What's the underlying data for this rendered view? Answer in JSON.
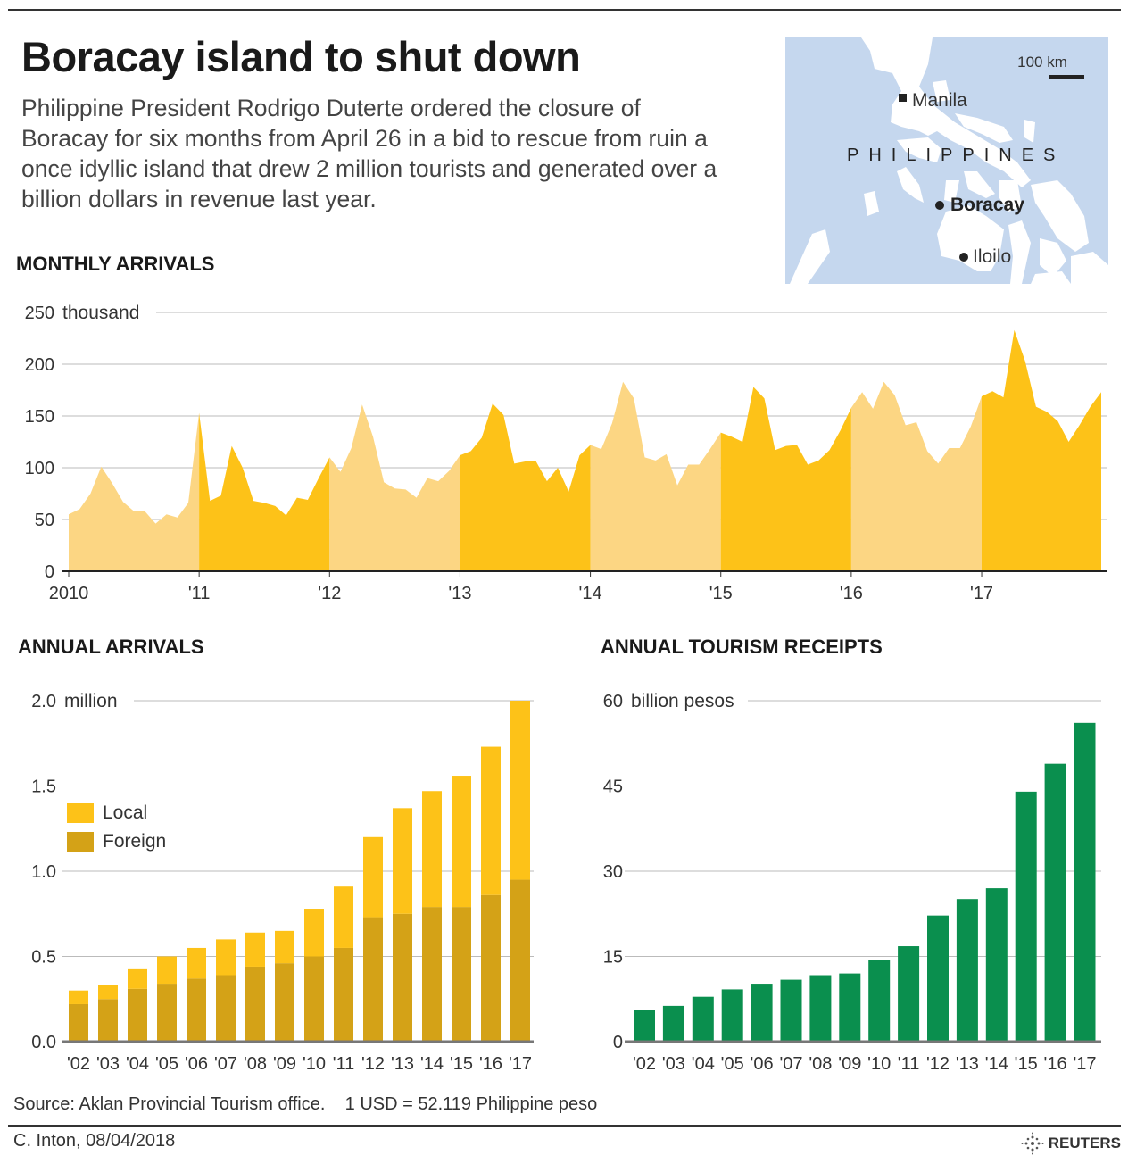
{
  "header": {
    "title": "Boracay island to shut down",
    "subtitle": "Philippine President Rodrigo Duterte ordered the closure of Boracay for six months from April 26 in a bid to rescue from ruin a once idyllic island that drew 2 million tourists and generated over a billion dollars in revenue last year."
  },
  "map": {
    "scale_label": "100 km",
    "country_label": "PHILIPPINES",
    "places": [
      {
        "name": "Manila",
        "marker": "square"
      },
      {
        "name": "Boracay",
        "marker": "dot",
        "bold": true
      },
      {
        "name": "Iloilo",
        "marker": "dot"
      }
    ],
    "colors": {
      "sea": "#c5d7ee",
      "land": "#ffffff"
    }
  },
  "sections": {
    "monthly": "MONTHLY ARRIVALS",
    "annual": "ANNUAL ARRIVALS",
    "receipts": "ANNUAL TOURISM RECEIPTS"
  },
  "chart_data": [
    {
      "type": "area",
      "title": "MONTHLY ARRIVALS",
      "ylabel": "thousand",
      "ylim": [
        0,
        250
      ],
      "yticks": [
        0,
        50,
        100,
        150,
        200,
        250
      ],
      "grid": true,
      "x_tick_labels": [
        "2010",
        "'11",
        "'12",
        "'13",
        "'14",
        "'15",
        "'16",
        "'17"
      ],
      "colors": {
        "even_year": "#fcd683",
        "odd_year": "#fdc218"
      },
      "years": [
        2010,
        2011,
        2012,
        2013,
        2014,
        2015,
        2016,
        2017
      ],
      "values": [
        [
          55,
          60,
          75,
          101,
          85,
          67,
          58,
          58,
          46,
          55,
          52,
          66
        ],
        [
          153,
          68,
          73,
          121,
          100,
          68,
          66,
          63,
          54,
          71,
          69,
          90
        ],
        [
          110,
          96,
          119,
          161,
          130,
          86,
          80,
          79,
          71,
          90,
          87,
          97
        ],
        [
          112,
          116,
          129,
          162,
          151,
          104,
          106,
          106,
          87,
          100,
          77,
          112
        ],
        [
          122,
          118,
          143,
          183,
          167,
          110,
          107,
          113,
          83,
          103,
          103,
          118
        ],
        [
          134,
          130,
          125,
          178,
          167,
          117,
          121,
          122,
          103,
          107,
          117,
          136
        ],
        [
          158,
          173,
          157,
          183,
          170,
          141,
          144,
          116,
          104,
          119,
          119,
          140
        ],
        [
          169,
          174,
          168,
          233,
          203,
          159,
          154,
          145,
          125,
          141,
          159,
          173
        ]
      ]
    },
    {
      "type": "bar",
      "stacked": true,
      "title": "ANNUAL ARRIVALS",
      "ylabel": "million",
      "ylim": [
        0,
        2.0
      ],
      "yticks": [
        "0.0",
        "0.5",
        "1.0",
        "1.5",
        "2.0"
      ],
      "grid": true,
      "legend": "left",
      "categories": [
        "'02",
        "'03",
        "'04",
        "'05",
        "'06",
        "'07",
        "'08",
        "'09",
        "'10",
        "'11",
        "'12",
        "'13",
        "'14",
        "'15",
        "'16",
        "'17"
      ],
      "series": [
        {
          "name": "Foreign",
          "color": "#d4a217",
          "values": [
            0.22,
            0.25,
            0.31,
            0.34,
            0.37,
            0.39,
            0.44,
            0.46,
            0.5,
            0.55,
            0.73,
            0.75,
            0.79,
            0.79,
            0.86,
            0.95
          ]
        },
        {
          "name": "Local",
          "color": "#fdc218",
          "values": [
            0.08,
            0.08,
            0.12,
            0.16,
            0.18,
            0.21,
            0.2,
            0.19,
            0.28,
            0.36,
            0.47,
            0.62,
            0.68,
            0.77,
            0.87,
            1.05
          ]
        }
      ]
    },
    {
      "type": "bar",
      "title": "ANNUAL TOURISM RECEIPTS",
      "ylabel": "billion pesos",
      "ylim": [
        0,
        60
      ],
      "yticks": [
        "0",
        "15",
        "30",
        "45",
        "60"
      ],
      "grid": true,
      "color": "#0a8f4e",
      "categories": [
        "'02",
        "'03",
        "'04",
        "'05",
        "'06",
        "'07",
        "'08",
        "'09",
        "'10",
        "'11",
        "'12",
        "'13",
        "'14",
        "'15",
        "'16",
        "'17"
      ],
      "values": [
        5.5,
        6.3,
        7.9,
        9.2,
        10.2,
        10.9,
        11.7,
        12.0,
        14.4,
        16.8,
        22.2,
        25.1,
        27.0,
        44.0,
        48.9,
        56.1
      ]
    }
  ],
  "footer": {
    "source": "Source: Aklan Provincial Tourism office.    1 USD = 52.119 Philippine peso",
    "credit": "C. Inton, 08/04/2018",
    "logo": "REUTERS"
  }
}
